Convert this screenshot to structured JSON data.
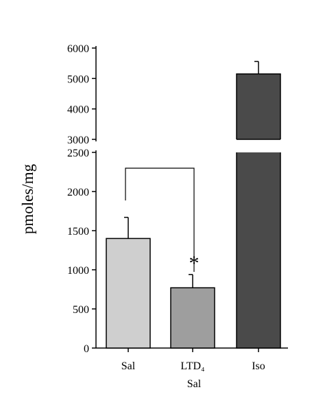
{
  "chart_data": {
    "type": "bar",
    "y_label": "pmoles/mg",
    "categories": [
      "Sal",
      "LTD₄ Sal",
      "Iso"
    ],
    "values": [
      1400,
      770,
      5150
    ],
    "errors": [
      270,
      170,
      410
    ],
    "colors": [
      "#cfcfcf",
      "#9e9e9e",
      "#4a4a4a"
    ],
    "panels": [
      {
        "ylim": [
          3000,
          6000
        ],
        "yticks": [
          3000,
          4000,
          5000,
          6000
        ]
      },
      {
        "ylim": [
          0,
          2500
        ],
        "yticks": [
          0,
          500,
          1000,
          1500,
          2000,
          2500
        ]
      }
    ],
    "annotation": "*"
  }
}
